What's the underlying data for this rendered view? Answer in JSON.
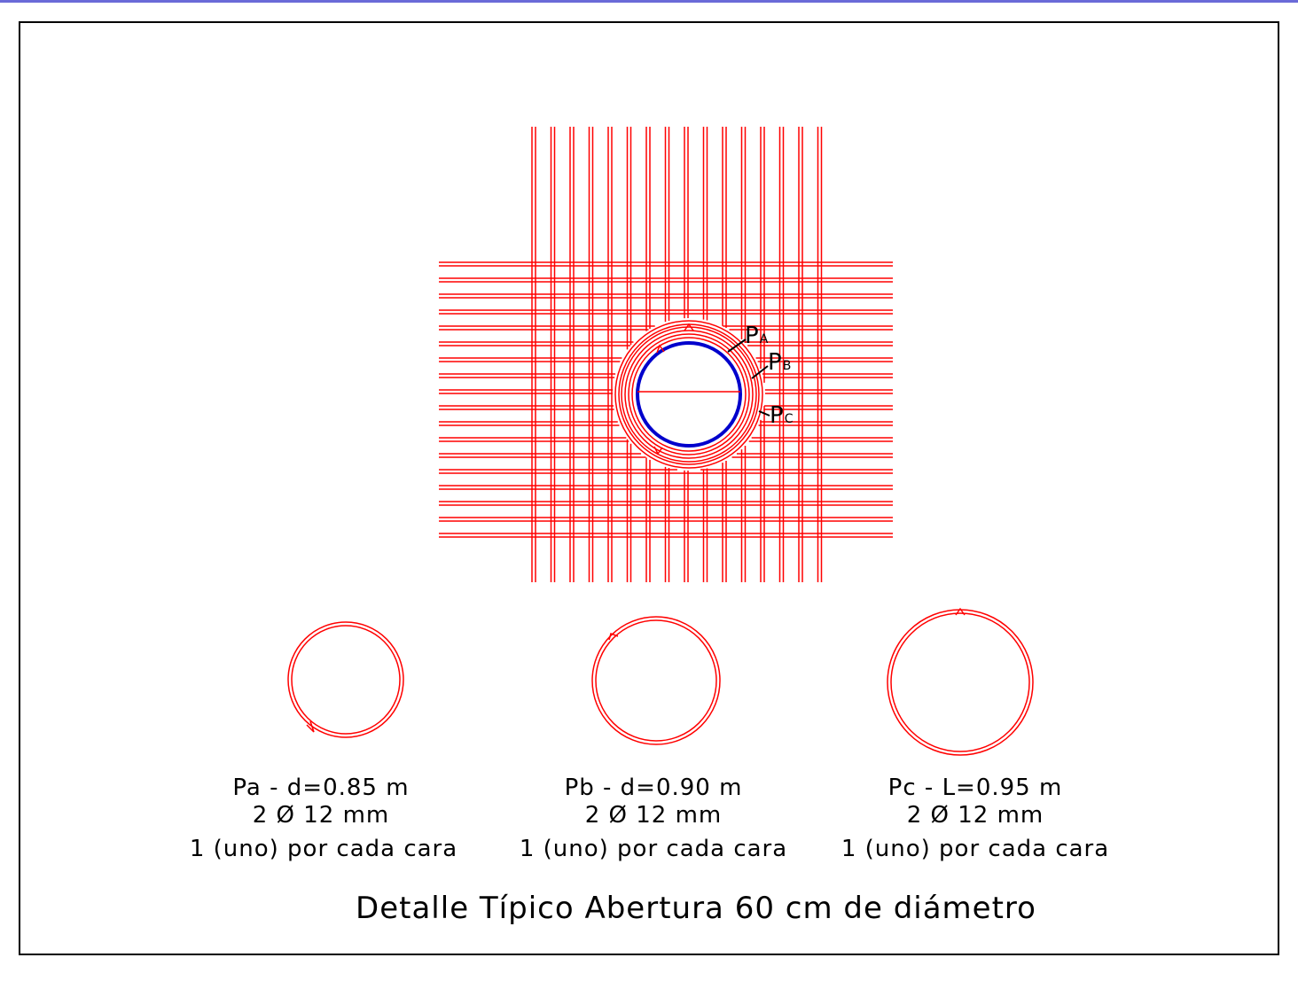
{
  "drawing": {
    "title": "Detalle Típico Abertura 60 cm de diámetro",
    "colors": {
      "rebar": "#ff0000",
      "opening": "#0000cc",
      "frame": "#000000",
      "top_rule": "#6a6ad8"
    },
    "callouts": [
      {
        "main": "P",
        "sub": "A"
      },
      {
        "main": "P",
        "sub": "B"
      },
      {
        "main": "P",
        "sub": "C"
      }
    ],
    "bars": [
      {
        "name_main": "Pa",
        "name_rest": " - d=0.85 m",
        "line2": "2 Ø 12 mm",
        "line3": "1 (uno) por cada cara",
        "diameter_m": 0.85,
        "arrow_position": "bottom"
      },
      {
        "name_main": "Pb",
        "name_rest": " - d=0.90 m",
        "line2": "2 Ø 12 mm",
        "line3": "1 (uno) por cada cara",
        "diameter_m": 0.9,
        "arrow_position": "top-left"
      },
      {
        "name_main": "Pc",
        "name_rest": " - L=0.95 m",
        "line2": "2 Ø 12 mm",
        "line3": "1 (uno) por cada cara",
        "diameter_m": 0.95,
        "arrow_position": "top"
      }
    ]
  }
}
